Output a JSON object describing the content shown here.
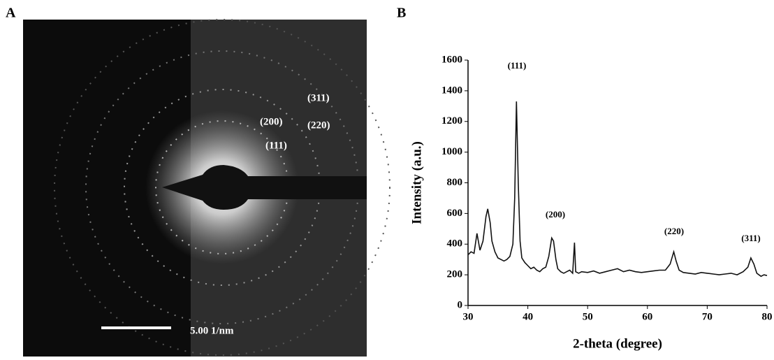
{
  "panel_a": {
    "label": "A",
    "annotations": [
      "(311)",
      "(200)",
      "(220)",
      "(111)"
    ],
    "scale_bar": "5.00 1/nm"
  },
  "chart_data": {
    "type": "line",
    "panel_label": "B",
    "x_label": "2-theta (degree)",
    "y_label": "Intensity (a.u.)",
    "x": [
      30,
      30.5,
      31,
      31.5,
      32,
      32.5,
      33,
      33.3,
      33.7,
      34,
      34.5,
      35,
      35.5,
      36,
      36.5,
      37,
      37.5,
      37.8,
      38.1,
      38.4,
      38.7,
      39,
      39.5,
      40,
      40.5,
      41,
      41.5,
      42,
      42.5,
      43,
      43.5,
      44,
      44.3,
      44.7,
      45,
      45.5,
      46,
      46.5,
      47,
      47.5,
      47.8,
      48,
      48.5,
      49,
      50,
      51,
      52,
      53,
      54,
      55,
      56,
      57,
      58,
      59,
      60,
      61,
      62,
      63,
      63.8,
      64.4,
      64.8,
      65.3,
      66,
      67,
      68,
      69,
      70,
      71,
      72,
      73,
      74,
      75,
      76,
      76.8,
      77.3,
      77.8,
      78.3,
      79,
      79.5,
      80
    ],
    "series": [
      {
        "color": "#111111",
        "values": [
          330,
          350,
          340,
          470,
          360,
          420,
          580,
          630,
          540,
          420,
          350,
          310,
          300,
          290,
          300,
          320,
          400,
          700,
          1330,
          800,
          420,
          310,
          280,
          260,
          240,
          250,
          230,
          220,
          240,
          250,
          320,
          440,
          420,
          300,
          240,
          220,
          210,
          220,
          230,
          210,
          410,
          220,
          210,
          220,
          215,
          225,
          210,
          220,
          230,
          240,
          220,
          230,
          220,
          215,
          220,
          225,
          230,
          230,
          270,
          350,
          290,
          230,
          215,
          210,
          205,
          215,
          210,
          205,
          200,
          205,
          210,
          200,
          220,
          250,
          310,
          270,
          210,
          190,
          200,
          195
        ]
      }
    ],
    "annotations": [
      "(111)",
      "(200)",
      "(220)",
      "(311)"
    ],
    "xlim": [
      30,
      80
    ],
    "xticks": [
      30,
      40,
      50,
      60,
      70,
      80
    ],
    "ylim": [
      0,
      1600
    ],
    "yticks": [
      0,
      200,
      400,
      600,
      800,
      1000,
      1200,
      1400,
      1600
    ]
  }
}
